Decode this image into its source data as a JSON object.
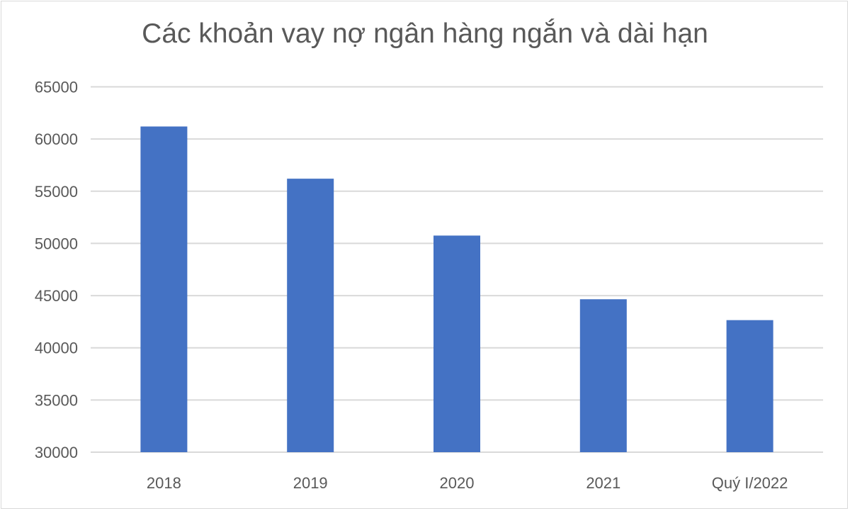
{
  "chart_data": {
    "type": "bar",
    "title": "Các khoản vay nợ ngân hàng ngắn và dài hạn",
    "categories": [
      "2018",
      "2019",
      "2020",
      "2021",
      "Quý I/2022"
    ],
    "values": [
      61200,
      56200,
      50750,
      44650,
      42650
    ],
    "xlabel": "",
    "ylabel": "",
    "ylim": [
      30000,
      65000
    ],
    "yticks": [
      "30000",
      "35000",
      "40000",
      "45000",
      "50000",
      "55000",
      "60000",
      "65000"
    ],
    "grid": true,
    "legend": "none",
    "bar_color": "#4472C4",
    "grid_color": "#D9D9D9"
  }
}
